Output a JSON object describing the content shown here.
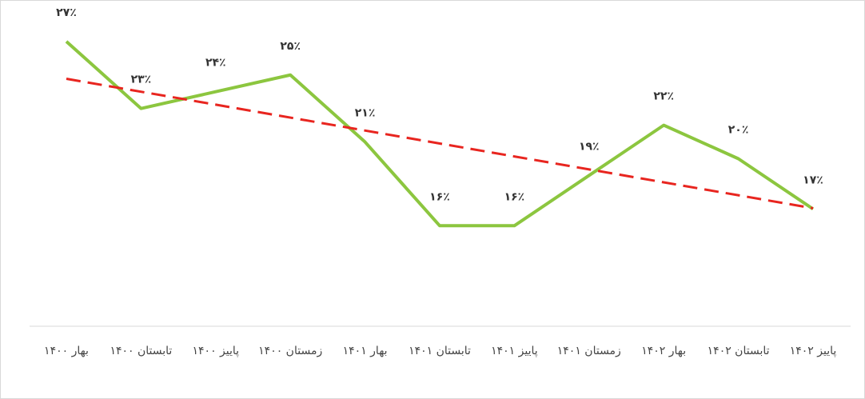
{
  "chart_data": {
    "type": "line",
    "categories": [
      "بهار ۱۴۰۰",
      "تابستان ۱۴۰۰",
      "پاییز ۱۴۰۰",
      "زمستان ۱۴۰۰",
      "بهار ۱۴۰۱",
      "تابستان ۱۴۰۱",
      "پاییز ۱۴۰۱",
      "زمستان ۱۴۰۱",
      "بهار ۱۴۰۲",
      "تابستان ۱۴۰۲",
      "پاییز ۱۴۰۲"
    ],
    "series": [
      {
        "color": "#8cc63f",
        "values": [
          27,
          23,
          24,
          25,
          21,
          16,
          16,
          19,
          22,
          20,
          17
        ],
        "value_labels": [
          "۲۷٪",
          "۲۳٪",
          "۲۴٪",
          "۲۵٪",
          "۲۱٪",
          "۱۶٪",
          "۱۶٪",
          "۱۹٪",
          "۲۲٪",
          "۲۰٪",
          "۱۷٪"
        ]
      }
    ],
    "trendline": {
      "type": "linear",
      "color": "#e8251f",
      "dashed": true
    },
    "ylim": [
      10,
      30
    ]
  }
}
